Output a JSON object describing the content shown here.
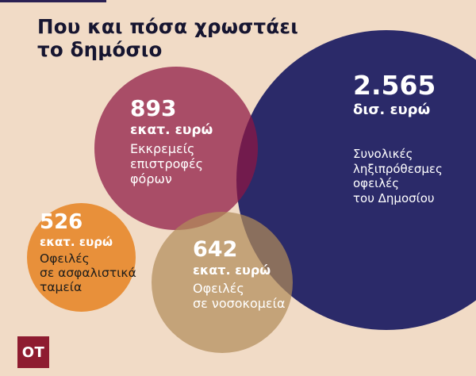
{
  "title": {
    "line1": "Που και πόσα χρωστάει",
    "line2": "το δημόσιο"
  },
  "logo": {
    "text": "OT"
  },
  "colors": {
    "background": "#f1dbc6",
    "accent_bar": "#2b2153",
    "title_ink": "#161530",
    "navy_circle": "#2b2a69",
    "maroon_circle": "#a94d68",
    "tan_circle": "#c3a278",
    "orange_circle": "#e8903a",
    "logo_red": "#8e1c30",
    "dark_text": "#1e1d1b"
  },
  "chart_data": {
    "type": "bubble",
    "title": "Που και πόσα χρωστάει το δημόσιο",
    "legend_position": "none",
    "grid": false,
    "bubbles": [
      {
        "name": "Συνολικές ληξιπρόθεσμες οφειλές του Δημοσίου",
        "value_label": "2.565",
        "unit": "δισ. ευρώ",
        "value_million_eur": 2565,
        "color": "#2b2a69"
      },
      {
        "name": "Εκκρεμείς επιστροφές φόρων",
        "value_label": "893",
        "unit": "εκατ. ευρώ",
        "value_million_eur": 893,
        "color": "#a94d68"
      },
      {
        "name": "Οφειλές σε νοσοκομεία",
        "value_label": "642",
        "unit": "εκατ. ευρώ",
        "value_million_eur": 642,
        "color": "#c3a278"
      },
      {
        "name": "Οφειλές σε ασφαλιστικά ταμεία",
        "value_label": "526",
        "unit": "εκατ. ευρώ",
        "value_million_eur": 526,
        "color": "#e8903a"
      }
    ]
  },
  "circles": {
    "total": {
      "value": "2.565",
      "unit": "δισ. ευρώ",
      "desc_lines": [
        "Συνολικές",
        "ληξιπρόθεσμες",
        "οφειλές",
        "του Δημοσίου"
      ]
    },
    "taxes": {
      "value": "893",
      "unit": "εκατ. ευρώ",
      "desc_lines": [
        "Εκκρεμείς",
        "επιστροφές",
        "φόρων"
      ]
    },
    "hospitals": {
      "value": "642",
      "unit": "εκατ. ευρώ",
      "desc_lines": [
        "Οφειλές",
        "σε νοσοκομεία"
      ]
    },
    "funds": {
      "value": "526",
      "unit": "εκατ. ευρώ",
      "desc_lines": [
        "Οφειλές",
        "σε ασφαλιστικά",
        "ταμεία"
      ]
    }
  }
}
